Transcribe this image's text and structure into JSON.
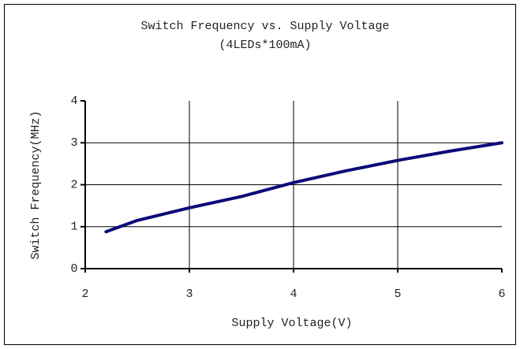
{
  "chart_data": {
    "type": "line",
    "title": "Switch Frequency vs. Supply Voltage",
    "subtitle": "(4LEDs*100mA)",
    "x_label": "Supply Voltage(V)",
    "y_label": "Switch Frequency(MHz)",
    "x": [
      2.2,
      2.5,
      3,
      3.5,
      4,
      4.5,
      5,
      5.5,
      6
    ],
    "series": [
      {
        "name": "Switch Frequency",
        "color": "#0a0a78",
        "values": [
          0.88,
          1.15,
          1.45,
          1.72,
          2.05,
          2.33,
          2.58,
          2.8,
          3.0
        ]
      }
    ],
    "xlim": [
      2,
      6
    ],
    "xticks": [
      2,
      3,
      4,
      5,
      6
    ],
    "ylim": [
      0,
      4
    ],
    "yticks": [
      0,
      1,
      2,
      3,
      4
    ],
    "grid": true
  }
}
